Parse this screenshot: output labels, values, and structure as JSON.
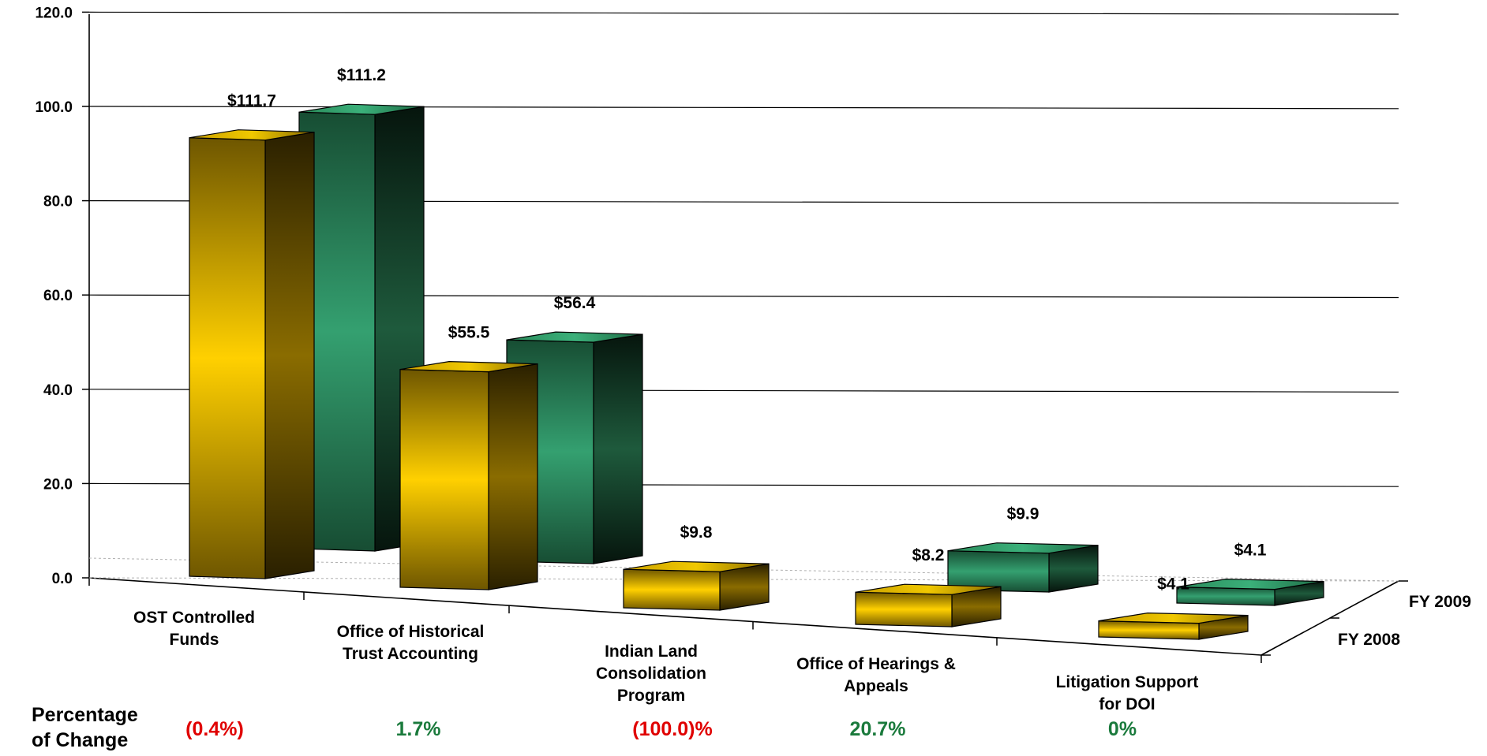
{
  "chart_data": {
    "type": "bar",
    "y_ticks": [
      "0.0",
      "20.0",
      "40.0",
      "60.0",
      "80.0",
      "100.0",
      "120.0"
    ],
    "ylim": [
      0,
      120
    ],
    "categories": [
      [
        "OST Controlled",
        "Funds"
      ],
      [
        "Office of Historical",
        "Trust Accounting"
      ],
      [
        "Indian Land",
        "Consolidation",
        "Program"
      ],
      [
        "Office of Hearings &",
        "Appeals"
      ],
      [
        "Litigation Support",
        "for DOI"
      ]
    ],
    "series": [
      {
        "name": "FY 2008",
        "color": "#f5c400",
        "values": [
          111.7,
          55.5,
          9.8,
          8.2,
          4.1
        ],
        "labels": [
          "$111.7",
          "$55.5",
          "$9.8",
          "$8.2",
          "$4.1"
        ]
      },
      {
        "name": "FY 2009",
        "color": "#2a9a63",
        "values": [
          111.2,
          56.4,
          null,
          9.9,
          4.1
        ],
        "labels": [
          "$111.2",
          "$56.4",
          null,
          "$9.9",
          "$4.1"
        ]
      }
    ],
    "percentage_label": [
      "Percentage",
      "of Change"
    ],
    "percentage_change": [
      {
        "text": "(0.4%)",
        "color": "#e00000"
      },
      {
        "text": "1.7%",
        "color": "#1a7a3c"
      },
      {
        "text": "(100.0)%",
        "color": "#e00000"
      },
      {
        "text": "20.7%",
        "color": "#1a7a3c"
      },
      {
        "text": "0%",
        "color": "#1a7a3c"
      }
    ],
    "grid": true,
    "legend": "depth-axis-right"
  }
}
